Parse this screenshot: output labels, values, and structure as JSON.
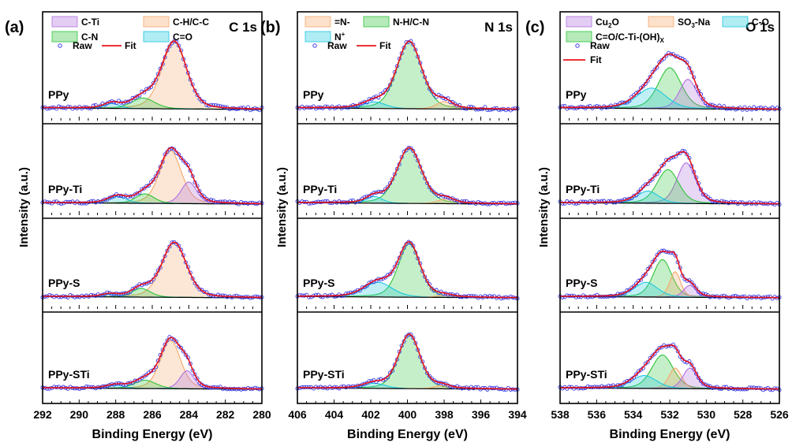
{
  "figure": {
    "ylabel": "Intensity (a.u.)",
    "xlabel": "Binding Energy (eV)",
    "samples": [
      "PPy",
      "PPy-Ti",
      "PPy-S",
      "PPy-STi"
    ],
    "raw_label": "Raw",
    "fit_label": "Fit",
    "colors": {
      "raw": "#3a3ae6",
      "fit": "#e8141c",
      "background": "#000000",
      "C-Ti": "#b070e0",
      "C-H/C-C": "#f5a86a",
      "C-N": "#2ec43a",
      "C=O": "#1ec8e0",
      "=N-": "#f5a86a",
      "N-H/C-N": "#2ec43a",
      "N+": "#1ec8e0",
      "Cu2O": "#b070e0",
      "SO3-Na": "#f5a86a",
      "C-O": "#1ec8e0",
      "C=O/C-Ti-(OH)x": "#2ec43a"
    }
  },
  "chart_data": [
    {
      "type": "line",
      "panel_label": "(a)",
      "title": "C 1s",
      "xlabel": "Binding Energy (eV)",
      "ylabel": "Intensity (a.u.)",
      "xlim": [
        292,
        280
      ],
      "xticks": [
        "292",
        "290",
        "288",
        "286",
        "284",
        "282",
        "280"
      ],
      "legend": [
        {
          "name": "C-Ti",
          "label": "C-Ti"
        },
        {
          "name": "C-H/C-C",
          "label": "C-H/C-C"
        },
        {
          "name": "C-N",
          "label": "C-N"
        },
        {
          "name": "C=O",
          "label": "C=O"
        }
      ],
      "stacks": [
        {
          "sample": "PPy",
          "peaks": [
            {
              "name": "C-H/C-C",
              "center": 284.8,
              "height": 0.82,
              "fwhm": 1.6
            },
            {
              "name": "C-N",
              "center": 286.5,
              "height": 0.13,
              "fwhm": 1.5
            },
            {
              "name": "C=O",
              "center": 288.2,
              "height": 0.06,
              "fwhm": 1.0
            }
          ]
        },
        {
          "sample": "PPy-Ti",
          "peaks": [
            {
              "name": "C-H/C-C",
              "center": 285.0,
              "height": 0.78,
              "fwhm": 1.4
            },
            {
              "name": "C-Ti",
              "center": 284.0,
              "height": 0.32,
              "fwhm": 1.0
            },
            {
              "name": "C-N",
              "center": 286.4,
              "height": 0.14,
              "fwhm": 1.2
            },
            {
              "name": "C=O",
              "center": 287.9,
              "height": 0.1,
              "fwhm": 1.2
            }
          ]
        },
        {
          "sample": "PPy-S",
          "peaks": [
            {
              "name": "C-H/C-C",
              "center": 284.8,
              "height": 0.82,
              "fwhm": 1.6
            },
            {
              "name": "C-N",
              "center": 286.6,
              "height": 0.13,
              "fwhm": 1.2
            },
            {
              "name": "C=O",
              "center": 288.3,
              "height": 0.04,
              "fwhm": 1.0
            }
          ]
        },
        {
          "sample": "PPy-STi",
          "peaks": [
            {
              "name": "C-H/C-C",
              "center": 285.0,
              "height": 0.75,
              "fwhm": 1.3
            },
            {
              "name": "C-Ti",
              "center": 284.1,
              "height": 0.28,
              "fwhm": 0.9
            },
            {
              "name": "C-N",
              "center": 286.4,
              "height": 0.13,
              "fwhm": 1.4
            },
            {
              "name": "C=O",
              "center": 288.0,
              "height": 0.05,
              "fwhm": 1.2
            }
          ]
        }
      ]
    },
    {
      "type": "line",
      "panel_label": "(b)",
      "title": "N 1s",
      "xlabel": "Binding Energy (eV)",
      "ylabel": "",
      "xlim": [
        406,
        394
      ],
      "xticks": [
        "406",
        "404",
        "402",
        "400",
        "398",
        "396",
        "394"
      ],
      "legend": [
        {
          "name": "=N-",
          "label": "=N-"
        },
        {
          "name": "N-H/C-N",
          "label": "N-H/C-N"
        },
        {
          "name": "N+",
          "label": "N",
          "sup": "+"
        }
      ],
      "stacks": [
        {
          "sample": "PPy",
          "peaks": [
            {
              "name": "N-H/C-N",
              "center": 399.9,
              "height": 0.82,
              "fwhm": 1.6
            },
            {
              "name": "N+",
              "center": 401.8,
              "height": 0.08,
              "fwhm": 1.4
            },
            {
              "name": "=N-",
              "center": 398.0,
              "height": 0.09,
              "fwhm": 1.0
            }
          ]
        },
        {
          "sample": "PPy-Ti",
          "peaks": [
            {
              "name": "N-H/C-N",
              "center": 399.9,
              "height": 0.82,
              "fwhm": 1.6
            },
            {
              "name": "N+",
              "center": 401.8,
              "height": 0.1,
              "fwhm": 1.0
            },
            {
              "name": "=N-",
              "center": 397.9,
              "height": 0.07,
              "fwhm": 1.0
            }
          ]
        },
        {
          "sample": "PPy-S",
          "peaks": [
            {
              "name": "N-H/C-N",
              "center": 399.9,
              "height": 0.8,
              "fwhm": 1.4
            },
            {
              "name": "N+",
              "center": 401.6,
              "height": 0.22,
              "fwhm": 1.8
            },
            {
              "name": "=N-",
              "center": 398.0,
              "height": 0.03,
              "fwhm": 1.0
            }
          ]
        },
        {
          "sample": "PPy-STi",
          "peaks": [
            {
              "name": "N-H/C-N",
              "center": 399.9,
              "height": 0.84,
              "fwhm": 1.4
            },
            {
              "name": "N+",
              "center": 401.8,
              "height": 0.08,
              "fwhm": 1.4
            },
            {
              "name": "=N-",
              "center": 398.1,
              "height": 0.05,
              "fwhm": 1.0
            }
          ]
        }
      ]
    },
    {
      "type": "line",
      "panel_label": "(c)",
      "title": "O 1s",
      "xlabel": "Binding Energy (eV)",
      "ylabel": "",
      "xlim": [
        538,
        526
      ],
      "xticks": [
        "538",
        "536",
        "534",
        "532",
        "530",
        "528",
        "526"
      ],
      "legend": [
        {
          "name": "Cu2O",
          "label": "Cu",
          "sub": "2",
          "tail": "O"
        },
        {
          "name": "SO3-Na",
          "label": "SO",
          "sub": "3",
          "tail": "-Na"
        },
        {
          "name": "C-O",
          "label": "C-O"
        },
        {
          "name": "C=O/C-Ti-(OH)x",
          "label": "C=O/C-Ti-(OH)",
          "sub": "X",
          "tail": ""
        }
      ],
      "stacks": [
        {
          "sample": "PPy",
          "peaks": [
            {
              "name": "C=O/C-Ti-(OH)x",
              "center": 532.0,
              "height": 0.5,
              "fwhm": 1.5
            },
            {
              "name": "Cu2O",
              "center": 531.0,
              "height": 0.36,
              "fwhm": 1.1
            },
            {
              "name": "C-O",
              "center": 533.0,
              "height": 0.25,
              "fwhm": 1.9
            }
          ]
        },
        {
          "sample": "PPy-Ti",
          "peaks": [
            {
              "name": "Cu2O",
              "center": 531.1,
              "height": 0.6,
              "fwhm": 1.2
            },
            {
              "name": "C=O/C-Ti-(OH)x",
              "center": 532.1,
              "height": 0.5,
              "fwhm": 1.4
            },
            {
              "name": "C-O",
              "center": 533.2,
              "height": 0.18,
              "fwhm": 1.4
            }
          ]
        },
        {
          "sample": "PPy-S",
          "peaks": [
            {
              "name": "C=O/C-Ti-(OH)x",
              "center": 532.4,
              "height": 0.56,
              "fwhm": 1.2
            },
            {
              "name": "SO3-Na",
              "center": 531.7,
              "height": 0.38,
              "fwhm": 0.7
            },
            {
              "name": "Cu2O",
              "center": 530.9,
              "height": 0.18,
              "fwhm": 0.8
            },
            {
              "name": "C-O",
              "center": 533.3,
              "height": 0.22,
              "fwhm": 1.5
            }
          ]
        },
        {
          "sample": "PPy-STi",
          "peaks": [
            {
              "name": "C=O/C-Ti-(OH)x",
              "center": 532.4,
              "height": 0.52,
              "fwhm": 1.4
            },
            {
              "name": "SO3-Na",
              "center": 531.7,
              "height": 0.32,
              "fwhm": 0.8
            },
            {
              "name": "Cu2O",
              "center": 530.9,
              "height": 0.32,
              "fwhm": 0.9
            },
            {
              "name": "C-O",
              "center": 533.4,
              "height": 0.2,
              "fwhm": 1.6
            }
          ]
        }
      ]
    }
  ]
}
